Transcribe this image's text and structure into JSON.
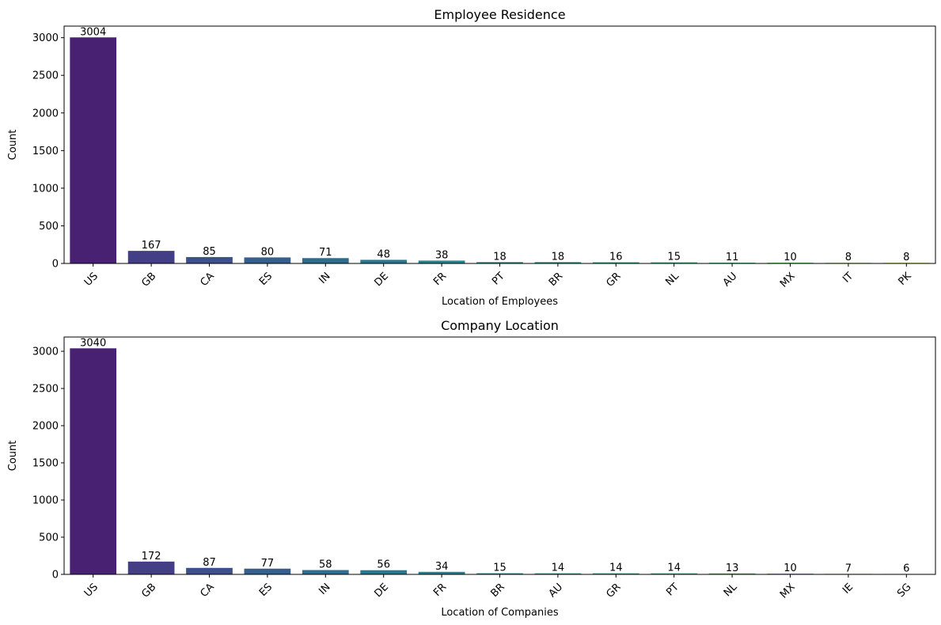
{
  "chart_data": [
    {
      "type": "bar",
      "title": "Employee Residence",
      "xlabel": "Location of Employees",
      "ylabel": "Count",
      "categories": [
        "US",
        "GB",
        "CA",
        "ES",
        "IN",
        "DE",
        "FR",
        "PT",
        "BR",
        "GR",
        "NL",
        "AU",
        "MX",
        "IT",
        "PK"
      ],
      "values": [
        3004,
        167,
        85,
        80,
        71,
        48,
        38,
        18,
        18,
        16,
        15,
        11,
        10,
        8,
        8
      ],
      "ylim": [
        0,
        3154
      ],
      "yticks": [
        0,
        500,
        1000,
        1500,
        2000,
        2500,
        3000
      ],
      "colors": [
        "#482173",
        "#433e85",
        "#3c508b",
        "#355f8d",
        "#2f6c8e",
        "#2a788e",
        "#25848e",
        "#21918c",
        "#1e9c89",
        "#22a884",
        "#2fb47c",
        "#43bf71",
        "#5ec962",
        "#7ad151",
        "#9bd93c"
      ],
      "grid": false,
      "legend": "none"
    },
    {
      "type": "bar",
      "title": "Company Location",
      "xlabel": "Location of Companies",
      "ylabel": "Count",
      "categories": [
        "US",
        "GB",
        "CA",
        "ES",
        "IN",
        "DE",
        "FR",
        "BR",
        "AU",
        "GR",
        "PT",
        "NL",
        "MX",
        "IE",
        "SG"
      ],
      "values": [
        3040,
        172,
        87,
        77,
        58,
        56,
        34,
        15,
        14,
        14,
        14,
        13,
        10,
        7,
        6
      ],
      "ylim": [
        0,
        3192
      ],
      "yticks": [
        0,
        500,
        1000,
        1500,
        2000,
        2500,
        3000
      ],
      "colors": [
        "#482173",
        "#433e85",
        "#3c508b",
        "#355f8d",
        "#2f6c8e",
        "#2a788e",
        "#25848e",
        "#21918c",
        "#1e9c89",
        "#22a884",
        "#2fb47c",
        "#43bf71",
        "#5ec962",
        "#7ad151",
        "#9bd93c"
      ],
      "grid": false,
      "legend": "none"
    }
  ]
}
